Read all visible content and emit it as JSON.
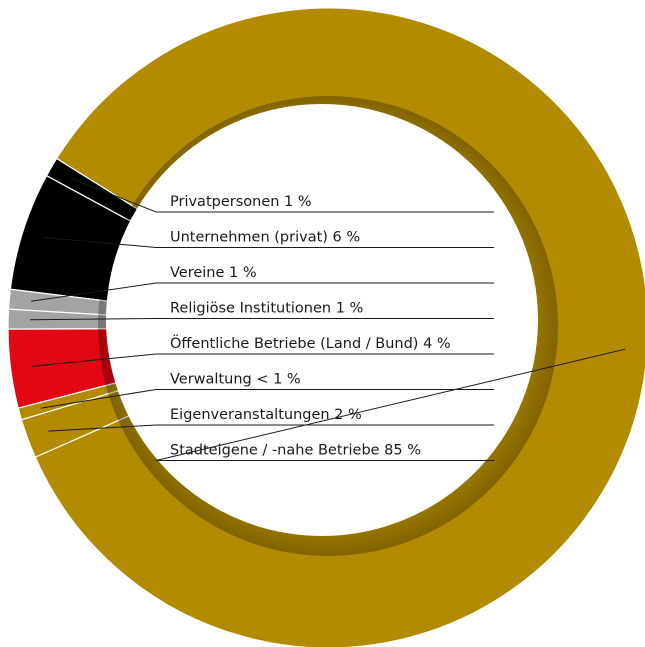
{
  "chart_data": {
    "type": "donut",
    "title": "",
    "slices": [
      {
        "label": "Privatpersonen 1 %",
        "value": 1,
        "color": "#000000"
      },
      {
        "label": "Unternehmen (privat) 6 %",
        "value": 6,
        "color": "#000000"
      },
      {
        "label": "Vereine 1 %",
        "value": 1,
        "color": "#a3a3a3"
      },
      {
        "label": "Religiöse Institutionen 1 %",
        "value": 1,
        "color": "#a3a3a3"
      },
      {
        "label": "Öffentliche Betriebe (Land / Bund) 4 %",
        "value": 4,
        "color": "#e30613"
      },
      {
        "label": "Verwaltung < 1 %",
        "value": 0.6,
        "color": "#b38b00"
      },
      {
        "label": "Eigenveranstaltungen 2 %",
        "value": 2,
        "color": "#b38b00"
      },
      {
        "label": "Stadteigene / -nahe Betriebe 85 %",
        "value": 85,
        "color": "#b38b00"
      }
    ],
    "legend": "inside-right"
  }
}
